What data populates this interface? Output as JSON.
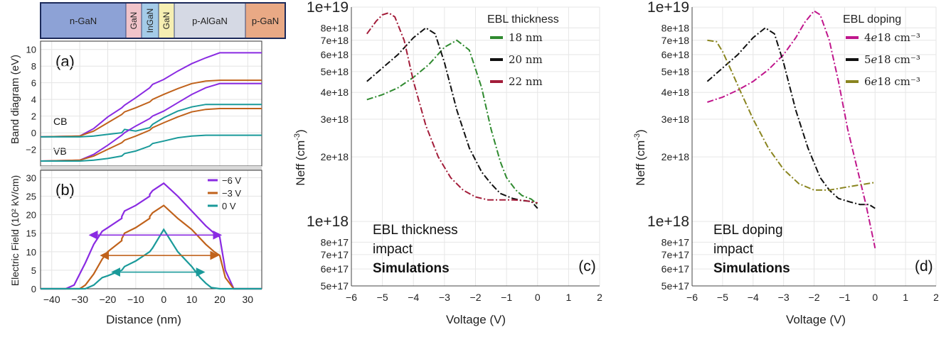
{
  "layer_strip": [
    {
      "label": "n-GaN",
      "color": "#8da2d6",
      "vertical": false
    },
    {
      "label": "GaN",
      "color": "#f1c4ca",
      "vertical": true
    },
    {
      "label": "InGaN",
      "color": "#a4cbe8",
      "vertical": true
    },
    {
      "label": "GaN",
      "color": "#f6efb2",
      "vertical": true
    },
    {
      "label": "p-AlGaN",
      "color": "#d5d9e4",
      "vertical": false
    },
    {
      "label": "p-GaN",
      "color": "#e9a985",
      "vertical": false
    }
  ],
  "colors": {
    "purple": "#8a2be2",
    "orange": "#c0621b",
    "teal": "#1a9a9a",
    "green": "#2f8a2f",
    "black": "#111111",
    "red": "#a31d3a",
    "magenta": "#c0168c",
    "olive": "#8a8520"
  },
  "chart_data": [
    {
      "type": "line",
      "panel_label": "(a)",
      "ylabel": "Band diagram (eV)",
      "xlim": [
        -44,
        35
      ],
      "ylim": [
        -4,
        11
      ],
      "yticks": [
        -2,
        0,
        2,
        4,
        6,
        8,
        10
      ],
      "annotations": [
        "CB",
        "VB"
      ],
      "series": [
        {
          "name": "-6 V CB",
          "color": "purple",
          "x": [
            -44,
            -30,
            -25,
            -20,
            -15,
            -14,
            -10,
            -5,
            -4,
            0,
            5,
            10,
            15,
            20,
            35
          ],
          "y": [
            -0.5,
            -0.4,
            0.5,
            1.9,
            3.0,
            3.3,
            4.2,
            5.4,
            5.8,
            6.4,
            7.4,
            8.3,
            9.0,
            9.6,
            9.6
          ]
        },
        {
          "name": "-3 V CB",
          "color": "orange",
          "x": [
            -44,
            -30,
            -25,
            -20,
            -15,
            -14,
            -10,
            -5,
            -4,
            0,
            5,
            10,
            15,
            20,
            35
          ],
          "y": [
            -0.5,
            -0.4,
            0.2,
            1.2,
            2.2,
            2.5,
            3.0,
            3.7,
            4.0,
            4.6,
            5.3,
            5.9,
            6.2,
            6.3,
            6.3
          ]
        },
        {
          "name": "0 V CB",
          "color": "teal",
          "x": [
            -44,
            -30,
            -25,
            -20,
            -15,
            -14,
            -10,
            -5,
            -4,
            0,
            5,
            10,
            15,
            20,
            35
          ],
          "y": [
            -0.5,
            -0.5,
            -0.4,
            -0.2,
            0.0,
            0.4,
            0.2,
            0.6,
            1.0,
            1.8,
            2.6,
            3.1,
            3.4,
            3.4,
            3.4
          ]
        },
        {
          "name": "-6 V VB",
          "color": "purple",
          "x": [
            -44,
            -30,
            -25,
            -20,
            -15,
            -14,
            -10,
            -5,
            -4,
            0,
            5,
            10,
            15,
            20,
            35
          ],
          "y": [
            -3.4,
            -3.3,
            -2.6,
            -1.5,
            -0.3,
            0.0,
            0.8,
            1.7,
            2.0,
            2.6,
            3.6,
            4.6,
            5.4,
            5.9,
            5.9
          ]
        },
        {
          "name": "-3 V VB",
          "color": "orange",
          "x": [
            -44,
            -30,
            -25,
            -20,
            -15,
            -14,
            -10,
            -5,
            -4,
            0,
            5,
            10,
            15,
            20,
            35
          ],
          "y": [
            -3.4,
            -3.3,
            -2.8,
            -2.0,
            -1.2,
            -0.9,
            -0.4,
            0.3,
            0.6,
            1.2,
            1.9,
            2.5,
            2.8,
            2.9,
            2.9
          ]
        },
        {
          "name": "0 V VB",
          "color": "teal",
          "x": [
            -44,
            -30,
            -25,
            -20,
            -15,
            -14,
            -10,
            -5,
            -4,
            0,
            5,
            10,
            15,
            20,
            35
          ],
          "y": [
            -3.4,
            -3.4,
            -3.3,
            -3.1,
            -2.8,
            -2.5,
            -2.2,
            -1.6,
            -1.3,
            -1.0,
            -0.6,
            -0.4,
            -0.3,
            -0.3,
            -0.3
          ]
        }
      ]
    },
    {
      "type": "line",
      "panel_label": "(b)",
      "ylabel": "Electric Field (10² kV/cm)",
      "xlabel": "Distance (nm)",
      "xlim": [
        -44,
        35
      ],
      "ylim": [
        0,
        32
      ],
      "xticks": [
        -40,
        -30,
        -20,
        -10,
        0,
        10,
        20,
        30
      ],
      "yticks": [
        0,
        5,
        10,
        15,
        20,
        25,
        30
      ],
      "legend": [
        "-6 V",
        "-3 V",
        "0 V"
      ],
      "series": [
        {
          "name": "-6 V",
          "color": "purple",
          "x": [
            -44,
            -35,
            -32,
            -28,
            -25,
            -22,
            -20,
            -15,
            -15,
            -14,
            -10,
            -5,
            -5,
            -4,
            0,
            5,
            10,
            15,
            18,
            20,
            22,
            25,
            35
          ],
          "y": [
            0,
            0,
            1,
            7,
            12,
            15.5,
            16.5,
            19,
            19.5,
            21,
            22.5,
            25,
            25.5,
            26.5,
            28.5,
            25,
            21,
            17,
            15,
            14,
            5,
            0,
            0
          ]
        },
        {
          "name": "-3 V",
          "color": "orange",
          "x": [
            -44,
            -30,
            -28,
            -25,
            -22,
            -20,
            -15,
            -15,
            -14,
            -10,
            -5,
            -5,
            -4,
            0,
            5,
            10,
            15,
            18,
            20,
            22,
            25,
            35
          ],
          "y": [
            0,
            0,
            1,
            4,
            8,
            10,
            13,
            13.5,
            15,
            16.5,
            19,
            19.5,
            20.5,
            22.5,
            19,
            16,
            12,
            10,
            9,
            3,
            0,
            0
          ]
        },
        {
          "name": "0 V",
          "color": "teal",
          "x": [
            -44,
            -28,
            -25,
            -22,
            -20,
            -15,
            -14,
            -10,
            -5,
            -4,
            0,
            5,
            10,
            13,
            15,
            17,
            20,
            35
          ],
          "y": [
            0,
            0,
            1,
            3,
            3.5,
            5,
            6,
            7.5,
            10,
            11,
            16,
            10,
            6,
            3,
            1.5,
            0.3,
            0,
            0
          ]
        }
      ],
      "arrows": [
        {
          "color": "purple",
          "x1": -26,
          "x2": 20,
          "y": 14.5
        },
        {
          "color": "orange",
          "x1": -22,
          "x2": 19,
          "y": 9
        },
        {
          "color": "teal",
          "x1": -18,
          "x2": 14,
          "y": 4.5
        }
      ]
    },
    {
      "type": "line",
      "panel_label": "(c)",
      "ylabel_main": "Neff (cm",
      "ylabel_sup": "-3",
      "ylabel_tail": ")",
      "xlabel": "Voltage (V)",
      "xlim": [
        -6,
        2
      ],
      "ylim": [
        5e+17,
        1e+19
      ],
      "yscale": "log",
      "xticks": [
        -6,
        -5,
        -4,
        -3,
        -2,
        -1,
        0,
        1,
        2
      ],
      "yticks": [
        5e+17,
        6e+17,
        7e+17,
        8e+17,
        1e+18,
        2e+18,
        3e+18,
        4e+18,
        5e+18,
        6e+18,
        7e+18,
        8e+18,
        1e+19
      ],
      "ytick_labels": [
        "5e+17",
        "6e+17",
        "7e+17",
        "8e+17",
        "1e+18",
        "2e+18",
        "3e+18",
        "4e+18",
        "5e+18",
        "6e+18",
        "7e+18",
        "8e+18",
        "1e+19"
      ],
      "legend_title": "EBL thickness",
      "legend": [
        "18 nm",
        "20 nm",
        "22 nm"
      ],
      "annotation_lines": [
        "EBL thickness",
        "impact",
        "Simulations"
      ],
      "series": [
        {
          "name": "18 nm",
          "color": "green",
          "x": [
            -5.5,
            -5,
            -4.5,
            -4,
            -3.5,
            -3,
            -2.6,
            -2.2,
            -1.8,
            -1.5,
            -1.2,
            -1,
            -0.7,
            -0.5,
            -0.2,
            0
          ],
          "y": [
            3.7e+18,
            3.9e+18,
            4.2e+18,
            4.7e+18,
            5.4e+18,
            6.5e+18,
            7e+18,
            6.3e+18,
            4.2e+18,
            2.7e+18,
            1.9e+18,
            1.6e+18,
            1.4e+18,
            1.32e+18,
            1.27e+18,
            1.2e+18
          ]
        },
        {
          "name": "20 nm",
          "color": "black",
          "x": [
            -5.5,
            -5,
            -4.5,
            -4,
            -3.6,
            -3.3,
            -3,
            -2.6,
            -2.2,
            -1.8,
            -1.5,
            -1.2,
            -0.8,
            -0.5,
            -0.2,
            0
          ],
          "y": [
            4.5e+18,
            5.2e+18,
            6e+18,
            7.2e+18,
            8e+18,
            7.5e+18,
            5.5e+18,
            3.3e+18,
            2.2e+18,
            1.7e+18,
            1.5e+18,
            1.35e+18,
            1.28e+18,
            1.25e+18,
            1.24e+18,
            1.15e+18
          ]
        },
        {
          "name": "22 nm",
          "color": "red",
          "x": [
            -5.5,
            -5.2,
            -5,
            -4.8,
            -4.6,
            -4.3,
            -4,
            -3.6,
            -3.2,
            -2.8,
            -2.4,
            -2,
            -1.6,
            -1.2,
            -0.8,
            -0.4,
            0
          ],
          "y": [
            7.5e+18,
            8.6e+18,
            9.2e+18,
            9.4e+18,
            9e+18,
            7e+18,
            4.5e+18,
            2.8e+18,
            2e+18,
            1.6e+18,
            1.4e+18,
            1.3e+18,
            1.26e+18,
            1.26e+18,
            1.26e+18,
            1.25e+18,
            1.22e+18
          ]
        }
      ]
    },
    {
      "type": "line",
      "panel_label": "(d)",
      "ylabel_main": "Neff (cm",
      "ylabel_sup": "-3",
      "ylabel_tail": ")",
      "xlabel": "Voltage (V)",
      "xlim": [
        -6,
        2
      ],
      "ylim": [
        5e+17,
        1e+19
      ],
      "yscale": "log",
      "xticks": [
        -6,
        -5,
        -4,
        -3,
        -2,
        -1,
        0,
        1,
        2
      ],
      "yticks": [
        5e+17,
        6e+17,
        7e+17,
        8e+17,
        1e+18,
        2e+18,
        3e+18,
        4e+18,
        5e+18,
        6e+18,
        7e+18,
        8e+18,
        1e+19
      ],
      "ytick_labels": [
        "5e+17",
        "6e+17",
        "7e+17",
        "8e+17",
        "1e+18",
        "2e+18",
        "3e+18",
        "4e+18",
        "5e+18",
        "6e+18",
        "7e+18",
        "8e+18",
        "1e+19"
      ],
      "legend_title": "EBL doping",
      "legend": [
        "4𝑒18 cm⁻³",
        "5𝑒18 cm⁻³",
        "6𝑒18 cm⁻³"
      ],
      "annotation_lines": [
        "EBL doping",
        "impact",
        "Simulations"
      ],
      "series": [
        {
          "name": "4e18",
          "color": "magenta",
          "x": [
            -5.5,
            -5,
            -4.5,
            -4,
            -3.5,
            -3,
            -2.6,
            -2.3,
            -2,
            -1.8,
            -1.5,
            -1.2,
            -0.9,
            -0.6,
            -0.3,
            0
          ],
          "y": [
            3.6e+18,
            3.8e+18,
            4.1e+18,
            4.5e+18,
            5.1e+18,
            6e+18,
            7.2e+18,
            8.5e+18,
            9.6e+18,
            9.2e+18,
            7e+18,
            4.5e+18,
            2.7e+18,
            1.8e+18,
            1.2e+18,
            7.5e+17
          ]
        },
        {
          "name": "5e18",
          "color": "black",
          "x": [
            -5.5,
            -5,
            -4.5,
            -4,
            -3.6,
            -3.3,
            -3,
            -2.6,
            -2.2,
            -1.8,
            -1.5,
            -1.2,
            -0.8,
            -0.5,
            -0.2,
            0
          ],
          "y": [
            4.5e+18,
            5.2e+18,
            6e+18,
            7.2e+18,
            8e+18,
            7.5e+18,
            5.5e+18,
            3.3e+18,
            2.2e+18,
            1.6e+18,
            1.4e+18,
            1.28e+18,
            1.23e+18,
            1.2e+18,
            1.2e+18,
            1.15e+18
          ]
        },
        {
          "name": "6e18",
          "color": "olive",
          "x": [
            -5.5,
            -5.2,
            -5,
            -4.7,
            -4.4,
            -4,
            -3.5,
            -3,
            -2.5,
            -2,
            -1.5,
            -1,
            -0.5,
            0
          ],
          "y": [
            7e+18,
            6.9e+18,
            6.2e+18,
            5e+18,
            4e+18,
            3e+18,
            2.2e+18,
            1.75e+18,
            1.5e+18,
            1.4e+18,
            1.4e+18,
            1.44e+18,
            1.48e+18,
            1.52e+18
          ]
        }
      ]
    }
  ]
}
